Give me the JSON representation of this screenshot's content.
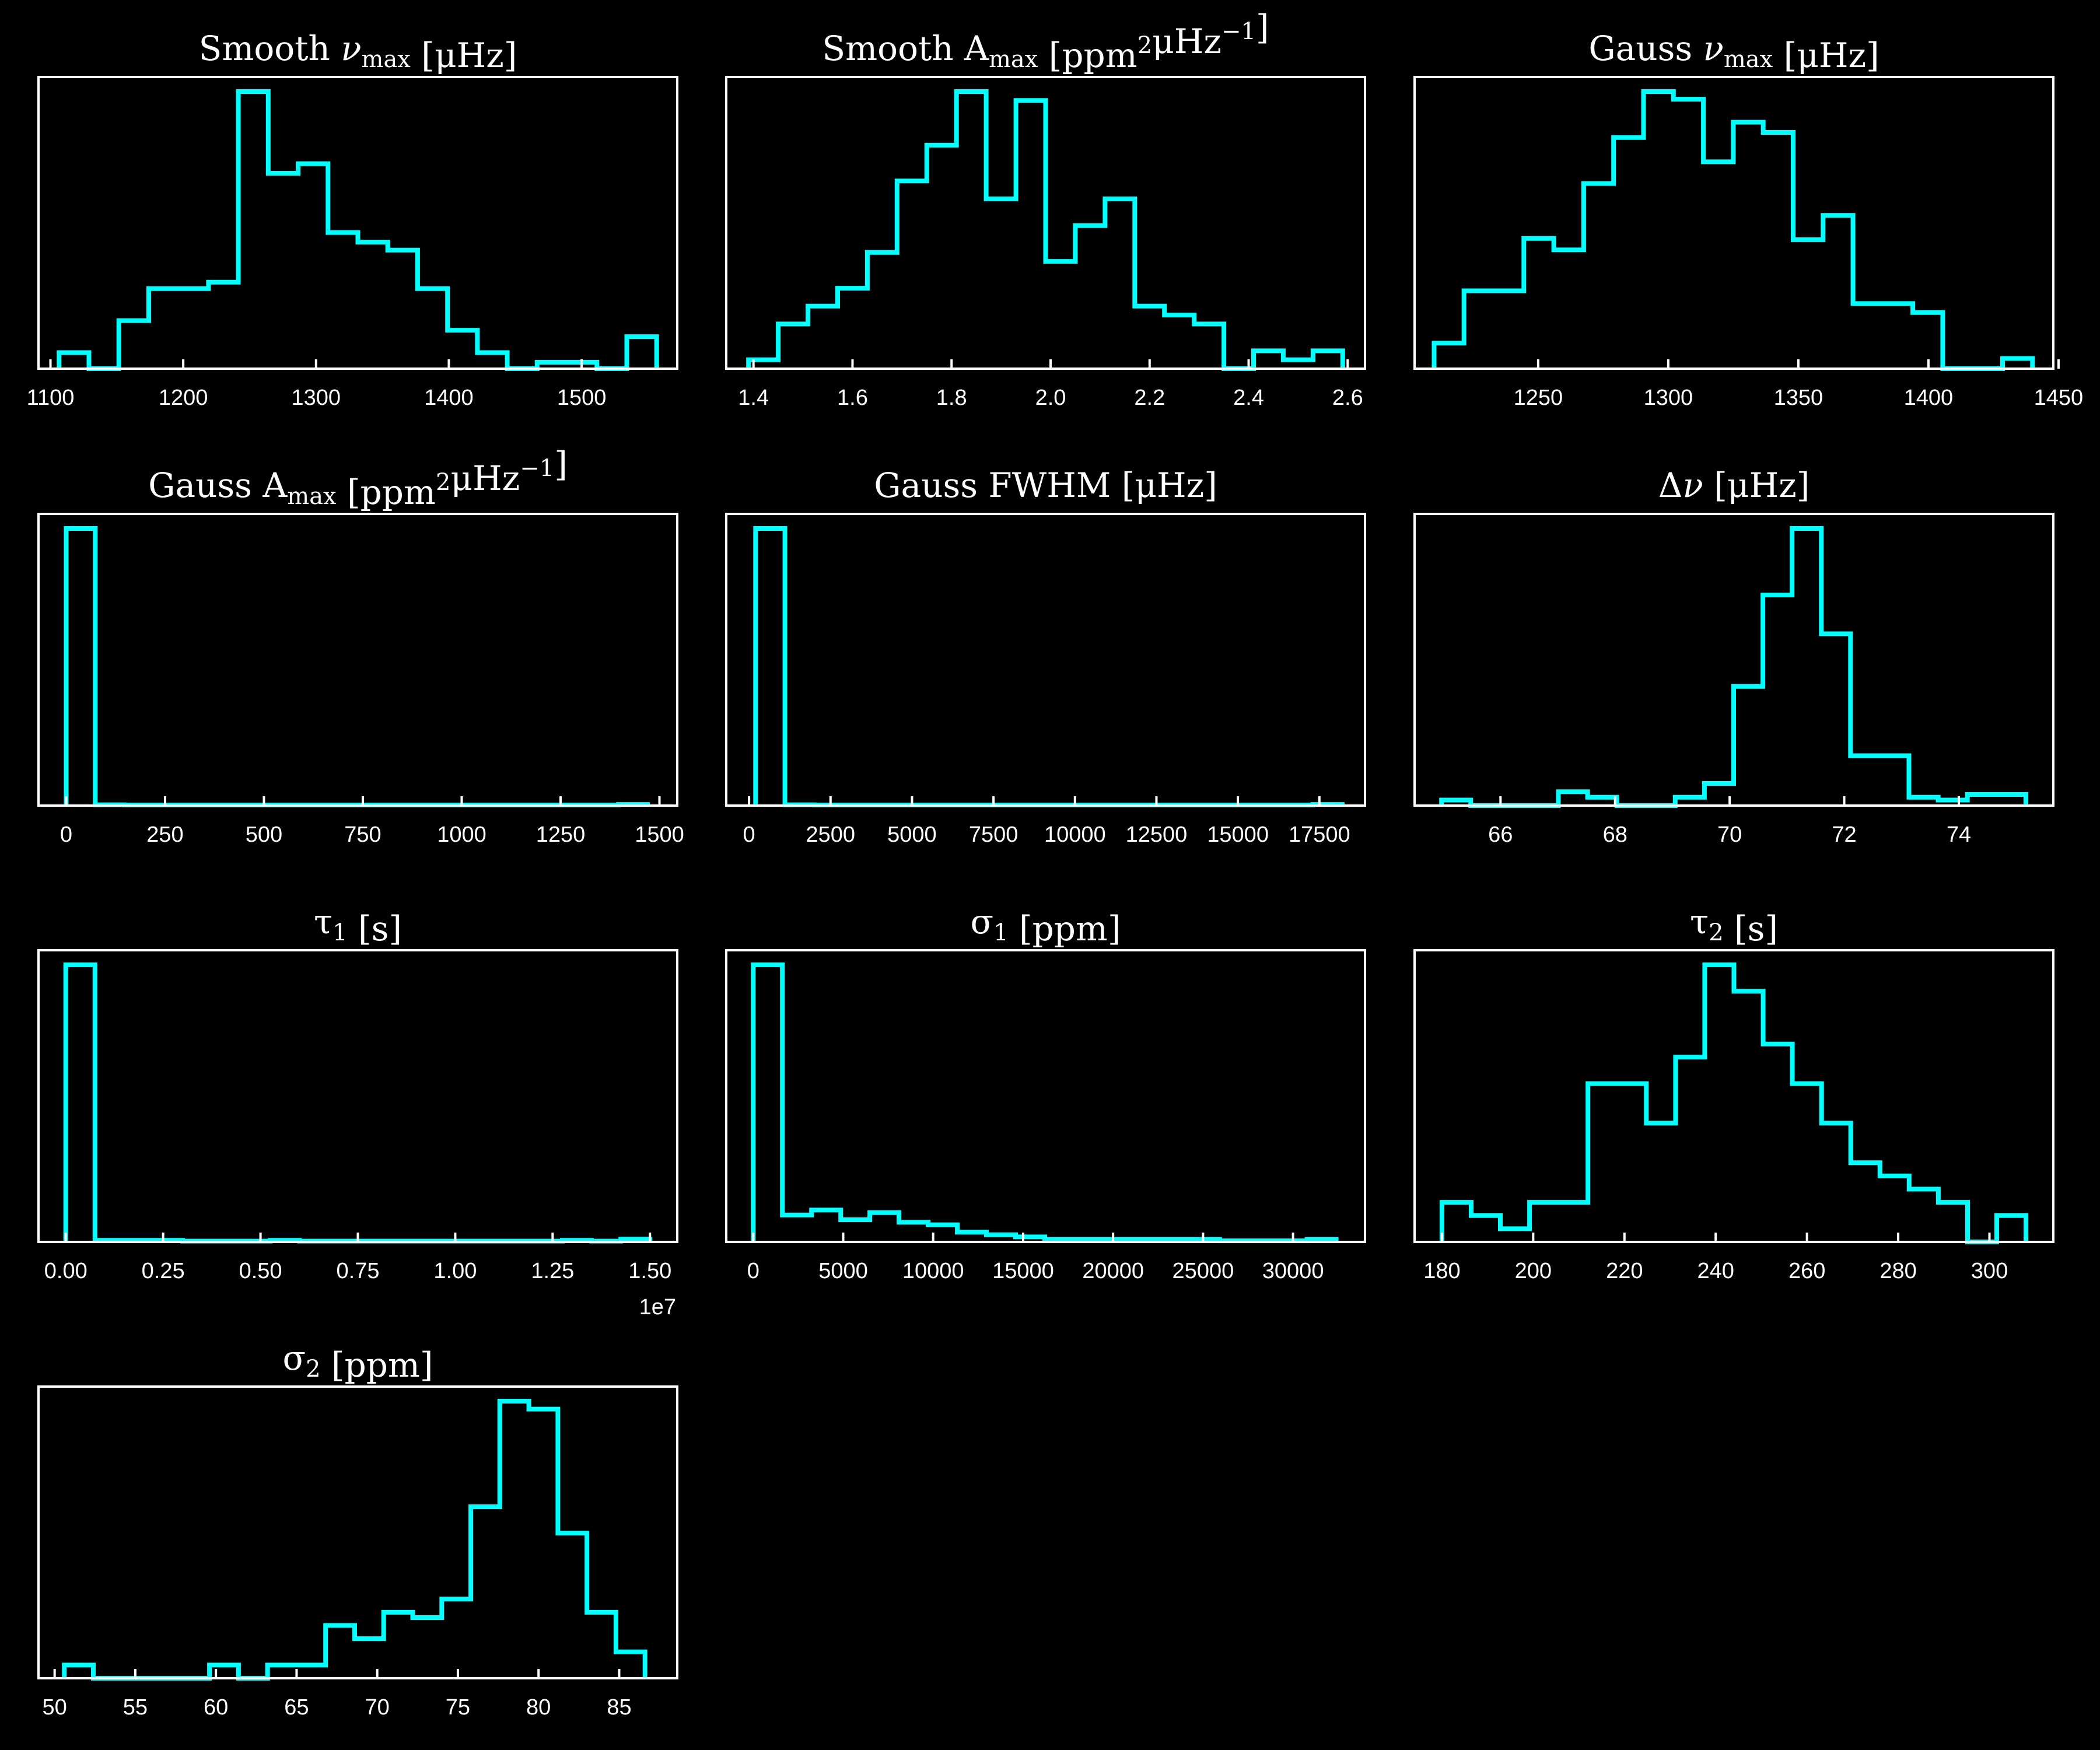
{
  "style": {
    "background": "#000000",
    "foreground": "#ffffff",
    "line_color": "#00ffff"
  },
  "chart_data": [
    {
      "type": "histogram",
      "title_parts": [
        {
          "t": "Smooth "
        },
        {
          "t": "ν",
          "italic": true
        },
        {
          "t": "max",
          "sub": true
        },
        {
          "t": " [μHz]"
        }
      ],
      "bin_edges": [
        1106.5,
        1129.0,
        1151.5,
        1174.0,
        1196.5,
        1219.0,
        1241.5,
        1264.0,
        1286.5,
        1309.0,
        1331.5,
        1354.0,
        1376.5,
        1399.0,
        1421.5,
        1444.0,
        1466.5,
        1489.0,
        1511.5,
        1534.0,
        1556.5
      ],
      "counts": [
        1,
        0,
        3,
        5,
        5,
        5.4,
        17.3,
        12.2,
        12.8,
        8.5,
        7.9,
        7.4,
        5,
        2.4,
        1,
        0,
        0.4,
        0.4,
        0,
        2
      ],
      "ylim": [
        0,
        17.3
      ],
      "xlim": [
        1091,
        1572
      ],
      "xticks": [
        1100,
        1200,
        1300,
        1400,
        1500
      ],
      "xtick_labels": [
        "1100",
        "1200",
        "1300",
        "1400",
        "1500"
      ]
    },
    {
      "type": "histogram",
      "title_parts": [
        {
          "t": "Smooth A"
        },
        {
          "t": "max",
          "sub": true
        },
        {
          "t": " [ppm"
        },
        {
          "t": "2",
          "sup": true
        },
        {
          "t": "μHz"
        },
        {
          "t": "−1",
          "sup": true
        },
        {
          "t": "]"
        }
      ],
      "bin_edges": [
        1.39,
        1.45,
        1.51,
        1.57,
        1.63,
        1.69,
        1.75,
        1.81,
        1.87,
        1.93,
        1.99,
        2.05,
        2.11,
        2.17,
        2.23,
        2.29,
        2.35,
        2.41,
        2.47,
        2.53,
        2.59
      ],
      "counts": [
        1,
        5,
        7,
        9,
        13,
        21,
        25,
        31,
        19,
        30,
        12,
        16,
        19,
        7,
        6,
        5,
        0,
        2,
        1,
        2
      ],
      "ylim": [
        0,
        31
      ],
      "xlim": [
        1.345,
        2.635
      ],
      "xticks": [
        1.4,
        1.6,
        1.8,
        2.0,
        2.2,
        2.4,
        2.6
      ],
      "xtick_labels": [
        "1.4",
        "1.6",
        "1.8",
        "2.0",
        "2.2",
        "2.4",
        "2.6"
      ]
    },
    {
      "type": "histogram",
      "title_parts": [
        {
          "t": "Gauss "
        },
        {
          "t": "ν",
          "italic": true
        },
        {
          "t": "max",
          "sub": true
        },
        {
          "t": " [μHz]"
        }
      ],
      "bin_edges": [
        1210,
        1221.5,
        1233,
        1244.5,
        1256,
        1267.5,
        1279,
        1290.5,
        1302,
        1313.5,
        1325,
        1336.5,
        1348,
        1359.5,
        1371,
        1382.5,
        1394,
        1405.5,
        1417,
        1428.5,
        1440
      ],
      "counts": [
        2,
        6.1,
        6.1,
        10.2,
        9.3,
        14.5,
        18.1,
        21.7,
        21.1,
        16.2,
        19.3,
        18.5,
        10.1,
        12.0,
        5.1,
        5.1,
        4.4,
        0,
        0,
        0.8
      ],
      "ylim": [
        0,
        21.7
      ],
      "xlim": [
        1202.5,
        1448
      ],
      "xticks": [
        1250,
        1300,
        1350,
        1400,
        1450
      ],
      "xtick_labels": [
        "1250",
        "1300",
        "1350",
        "1400",
        "1450"
      ]
    },
    {
      "type": "histogram",
      "title_parts": [
        {
          "t": "Gauss A"
        },
        {
          "t": "max",
          "sub": true
        },
        {
          "t": " [ppm"
        },
        {
          "t": "2",
          "sup": true
        },
        {
          "t": "μHz"
        },
        {
          "t": "−1",
          "sup": true
        },
        {
          "t": "]"
        }
      ],
      "bin_edges": [
        0,
        73.5,
        147,
        220.5,
        294,
        367.5,
        441,
        514.5,
        588,
        661.5,
        735,
        808.5,
        882,
        955.5,
        1029,
        1102.5,
        1176,
        1249.5,
        1323,
        1396.5,
        1470
      ],
      "counts": [
        100,
        0.3,
        0.2,
        0.2,
        0.2,
        0.2,
        0.2,
        0.2,
        0.2,
        0.2,
        0.2,
        0.2,
        0.2,
        0.2,
        0.2,
        0.2,
        0.2,
        0.2,
        0.2,
        0.4
      ],
      "ylim": [
        0,
        100
      ],
      "xlim": [
        -70,
        1545
      ],
      "xticks": [
        0,
        250,
        500,
        750,
        1000,
        1250,
        1500
      ],
      "xtick_labels": [
        "0",
        "250",
        "500",
        "750",
        "1000",
        "1250",
        "1500"
      ]
    },
    {
      "type": "histogram",
      "title_parts": [
        {
          "t": "Gauss FWHM [μHz]"
        }
      ],
      "bin_edges": [
        200,
        1100,
        2000,
        2900,
        3800,
        4700,
        5600,
        6500,
        7400,
        8300,
        9200,
        10100,
        11000,
        11900,
        12800,
        13700,
        14600,
        15500,
        16400,
        17300,
        18200
      ],
      "counts": [
        100,
        0.3,
        0.2,
        0.2,
        0.2,
        0.2,
        0.2,
        0.2,
        0.2,
        0.2,
        0.2,
        0.2,
        0.2,
        0.2,
        0.2,
        0.2,
        0.2,
        0.2,
        0.2,
        0.4
      ],
      "ylim": [
        0,
        100
      ],
      "xlim": [
        -700,
        18900
      ],
      "xticks": [
        0,
        2500,
        5000,
        7500,
        10000,
        12500,
        15000,
        17500
      ],
      "xtick_labels": [
        "0",
        "2500",
        "5000",
        "7500",
        "10000",
        "12500",
        "15000",
        "17500"
      ]
    },
    {
      "type": "histogram",
      "title_parts": [
        {
          "t": "Δ"
        },
        {
          "t": "ν",
          "italic": true
        },
        {
          "t": " [μHz]"
        }
      ],
      "bin_edges": [
        64.97,
        65.48,
        65.99,
        66.5,
        67.01,
        67.52,
        68.03,
        68.54,
        69.05,
        69.56,
        70.07,
        70.58,
        71.09,
        71.6,
        72.11,
        72.62,
        73.13,
        73.64,
        74.15,
        74.66,
        75.17
      ],
      "counts": [
        2,
        0,
        0,
        0,
        5,
        3,
        0,
        0,
        3,
        8,
        43,
        76,
        100,
        62,
        18,
        18,
        3,
        2,
        4,
        4
      ],
      "ylim": [
        0,
        100
      ],
      "xlim": [
        64.5,
        75.65
      ],
      "xticks": [
        66,
        68,
        70,
        72,
        74
      ],
      "xtick_labels": [
        "66",
        "68",
        "70",
        "72",
        "74"
      ]
    },
    {
      "type": "histogram",
      "title_parts": [
        {
          "t": "τ"
        },
        {
          "t": "1",
          "sub": true
        },
        {
          "t": " [s]"
        }
      ],
      "bin_edges": [
        0,
        750000,
        1500000,
        2250000,
        3000000,
        3750000,
        4500000,
        5250000,
        6000000,
        6750000,
        7500000,
        8250000,
        9000000,
        9750000,
        10500000,
        11250000,
        12000000,
        12750000,
        13500000,
        14250000,
        15000000
      ],
      "counts": [
        100,
        0.6,
        0.6,
        0.6,
        0.3,
        0.3,
        0.3,
        0.6,
        0.3,
        0.3,
        0.3,
        0.3,
        0.3,
        0.3,
        0.3,
        0.3,
        0.3,
        0.6,
        0.3,
        1.0
      ],
      "ylim": [
        0,
        100
      ],
      "xlim": [
        -700000,
        15700000
      ],
      "xticks": [
        0,
        2500000,
        5000000,
        7500000,
        10000000,
        12500000,
        15000000
      ],
      "xtick_labels": [
        "0.00",
        "0.25",
        "0.50",
        "0.75",
        "1.00",
        "1.25",
        "1.50"
      ],
      "offset_label": "1e7"
    },
    {
      "type": "histogram",
      "title_parts": [
        {
          "t": "σ"
        },
        {
          "t": "1",
          "sub": true
        },
        {
          "t": " [ppm]"
        }
      ],
      "bin_edges": [
        0,
        1620,
        3240,
        4860,
        6480,
        8100,
        9720,
        11340,
        12960,
        14580,
        16200,
        17820,
        19440,
        21060,
        22680,
        24300,
        25920,
        27540,
        29160,
        30780,
        32400
      ],
      "counts": [
        100,
        9.7,
        11.5,
        8.0,
        10.6,
        7.1,
        6.2,
        3.5,
        2.6,
        1.8,
        0.9,
        0.9,
        0.9,
        0.9,
        0.9,
        0.9,
        0.4,
        0.4,
        0.4,
        0.9
      ],
      "ylim": [
        0,
        100
      ],
      "xlim": [
        -1500,
        34000
      ],
      "xticks": [
        0,
        5000,
        10000,
        15000,
        20000,
        25000,
        30000
      ],
      "xtick_labels": [
        "0",
        "5000",
        "10000",
        "15000",
        "20000",
        "25000",
        "30000"
      ]
    },
    {
      "type": "histogram",
      "title_parts": [
        {
          "t": "τ"
        },
        {
          "t": "2",
          "sub": true
        },
        {
          "t": " [s]"
        }
      ],
      "bin_edges": [
        180,
        186.4,
        192.8,
        199.2,
        205.6,
        212,
        218.4,
        224.8,
        231.2,
        237.6,
        244,
        250.4,
        256.8,
        263.2,
        269.6,
        276,
        282.4,
        288.8,
        295.2,
        301.6,
        308
      ],
      "counts": [
        3,
        2,
        1,
        3,
        3,
        12,
        12,
        9,
        14,
        21,
        19,
        15,
        12,
        9,
        6,
        5,
        4,
        3,
        0,
        2
      ],
      "ylim": [
        0,
        21
      ],
      "xlim": [
        174,
        314
      ],
      "xticks": [
        180,
        200,
        220,
        240,
        260,
        280,
        300
      ],
      "xtick_labels": [
        "180",
        "200",
        "220",
        "240",
        "260",
        "280",
        "300"
      ]
    },
    {
      "type": "histogram",
      "title_parts": [
        {
          "t": "σ"
        },
        {
          "t": "2",
          "sub": true
        },
        {
          "t": " [ppm]"
        }
      ],
      "bin_edges": [
        50.6,
        52.4,
        54.2,
        56.0,
        57.8,
        59.6,
        61.4,
        63.2,
        65.0,
        66.8,
        68.6,
        70.4,
        72.2,
        74.0,
        75.8,
        77.6,
        79.4,
        81.2,
        83.0,
        84.8,
        86.6
      ],
      "counts": [
        1,
        0,
        0,
        0,
        0,
        1,
        0,
        1,
        1,
        4,
        3,
        5,
        4.6,
        6,
        13,
        21,
        20.4,
        11,
        5,
        2
      ],
      "ylim": [
        0,
        21
      ],
      "xlim": [
        49,
        88.6
      ],
      "xticks": [
        50,
        55,
        60,
        65,
        70,
        75,
        80,
        85
      ],
      "xtick_labels": [
        "50",
        "55",
        "60",
        "65",
        "70",
        "75",
        "80",
        "85"
      ]
    }
  ]
}
